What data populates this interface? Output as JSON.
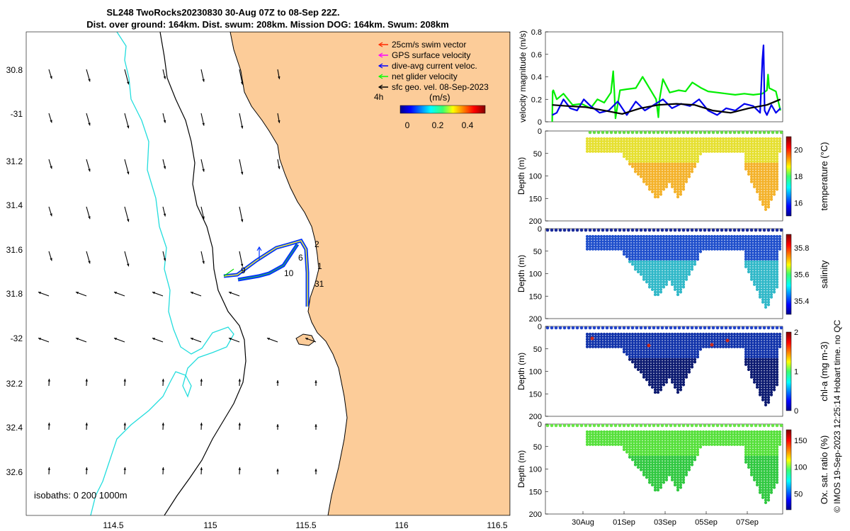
{
  "header": {
    "title_line1": "SL248 TwoRocks20230830 30-Aug 07Z to 08-Sep 22Z.",
    "title_line2": "Dist. over ground: 164km. Dist. swum: 208km. Mission DOG: 164km. Swum: 208km"
  },
  "map": {
    "lat_ticks": [
      "30.8",
      "-31",
      "31.2",
      "31.4",
      "31.6",
      "31.8",
      "-32",
      "32.2",
      "32.4",
      "32.6"
    ],
    "lon_ticks": [
      "114.5",
      "115",
      "115.5",
      "116",
      "116.5"
    ],
    "isobaths_label": "isobaths: 0   200  1000m",
    "track_labels": [
      "2",
      "6",
      "1",
      "31",
      "9",
      "10"
    ],
    "legend": [
      {
        "label": "25cm/s swim vector",
        "color": "#ff2a00"
      },
      {
        "label": "GPS surface velocity",
        "color": "#ff00ff"
      },
      {
        "label": "dive-avg current veloc.",
        "color": "#0000ff"
      },
      {
        "label": "net glider velocity",
        "color": "#00ff00"
      },
      {
        "label": "sfc geo. vel. 08-Sep-2023",
        "color": "#000000"
      }
    ],
    "legend_aux": "4h",
    "colorbar_title": "(m/s)",
    "colorbar_ticks": [
      "0",
      "0.2",
      "0.4"
    ],
    "colors": {
      "land": "#fccc99",
      "coast": "#000000",
      "isobath_200": "#000000",
      "isobath_1000": "#22dddd"
    }
  },
  "chart_data": [
    {
      "type": "line",
      "title": "",
      "ylabel": "velocity magnitude (m/s)",
      "ylim": [
        0,
        0.8
      ],
      "yticks": [
        "0",
        "0.2",
        "0.4",
        "0.6",
        "0.8"
      ],
      "xlim": [
        0,
        10.5
      ],
      "series": [
        {
          "name": "net glider velocity",
          "color": "#00ee00",
          "x": [
            0.3,
            0.32,
            0.35,
            0.5,
            0.8,
            1.2,
            1.6,
            2.0,
            2.3,
            2.6,
            2.9,
            3.0,
            3.05,
            3.1,
            3.3,
            3.6,
            4.0,
            4.3,
            4.6,
            4.9,
            5.0,
            5.05,
            5.2,
            5.5,
            5.9,
            6.2,
            6.5,
            6.9,
            7.2,
            7.6,
            8.0,
            8.4,
            8.8,
            9.2,
            9.6,
            9.8,
            9.85,
            9.9,
            10.2,
            10.4
          ],
          "y": [
            0.0,
            0.27,
            0.28,
            0.2,
            0.25,
            0.15,
            0.16,
            0.12,
            0.2,
            0.17,
            0.26,
            0.45,
            0.27,
            0.03,
            0.28,
            0.29,
            0.3,
            0.4,
            0.3,
            0.2,
            0.04,
            0.2,
            0.38,
            0.26,
            0.28,
            0.27,
            0.35,
            0.3,
            0.27,
            0.26,
            0.25,
            0.24,
            0.25,
            0.24,
            0.25,
            0.28,
            0.42,
            0.3,
            0.27,
            0.1
          ]
        },
        {
          "name": "dive-avg current veloc.",
          "color": "#0000ee",
          "x": [
            0.3,
            0.5,
            0.8,
            1.1,
            1.4,
            1.7,
            2.0,
            2.4,
            2.8,
            3.2,
            3.6,
            4.0,
            4.4,
            4.8,
            5.2,
            5.6,
            6.0,
            6.4,
            6.8,
            7.2,
            7.6,
            8.0,
            8.4,
            8.8,
            9.2,
            9.5,
            9.6,
            9.65,
            9.7,
            9.8,
            10.0,
            10.2,
            10.4
          ],
          "y": [
            0.06,
            0.08,
            0.2,
            0.12,
            0.1,
            0.2,
            0.14,
            0.08,
            0.1,
            0.18,
            0.06,
            0.18,
            0.1,
            0.15,
            0.2,
            0.12,
            0.16,
            0.14,
            0.2,
            0.1,
            0.06,
            0.12,
            0.1,
            0.16,
            0.14,
            0.08,
            0.55,
            0.68,
            0.1,
            0.06,
            0.15,
            0.08,
            0.12
          ]
        },
        {
          "name": "sfc geo. vel.",
          "color": "#000000",
          "x": [
            0.3,
            1.0,
            1.8,
            2.6,
            3.4,
            4.2,
            5.0,
            5.8,
            6.6,
            7.4,
            8.2,
            9.0,
            9.8,
            10.4
          ],
          "y": [
            0.15,
            0.14,
            0.13,
            0.1,
            0.07,
            0.12,
            0.15,
            0.16,
            0.15,
            0.1,
            0.08,
            0.12,
            0.15,
            0.2
          ]
        }
      ]
    },
    {
      "type": "scatter",
      "ylabel": "Depth (m)",
      "clabel": "temperature (°C)",
      "yticks": [
        "0",
        "50",
        "100",
        "150",
        "200"
      ],
      "cticks": [
        "16",
        "18",
        "20"
      ],
      "crange": [
        15,
        21
      ]
    },
    {
      "type": "scatter",
      "ylabel": "Depth (m)",
      "clabel": "salinity",
      "yticks": [
        "0",
        "50",
        "100",
        "150",
        "200"
      ],
      "cticks": [
        "35.4",
        "35.6",
        "35.8"
      ],
      "crange": [
        35.3,
        35.9
      ]
    },
    {
      "type": "scatter",
      "ylabel": "Depth (m)",
      "clabel": "chl-a (mg m-3)",
      "yticks": [
        "0",
        "50",
        "100",
        "150",
        "200"
      ],
      "cticks": [
        "0",
        "1",
        "2"
      ],
      "crange": [
        0,
        2
      ]
    },
    {
      "type": "scatter",
      "ylabel": "Depth (m)",
      "clabel": "Ox. sat. ratio (%)",
      "yticks": [
        "0",
        "50",
        "100",
        "150",
        "200"
      ],
      "cticks": [
        "50",
        "100",
        "150"
      ],
      "crange": [
        20,
        170
      ]
    }
  ],
  "time_axis": {
    "ticks": [
      "30Aug",
      "01Sep",
      "03Sep",
      "05Sep",
      "07Sep"
    ]
  },
  "credit": "© IMOS 19-Sep-2023 12:25:14 Hobart time. no QC"
}
